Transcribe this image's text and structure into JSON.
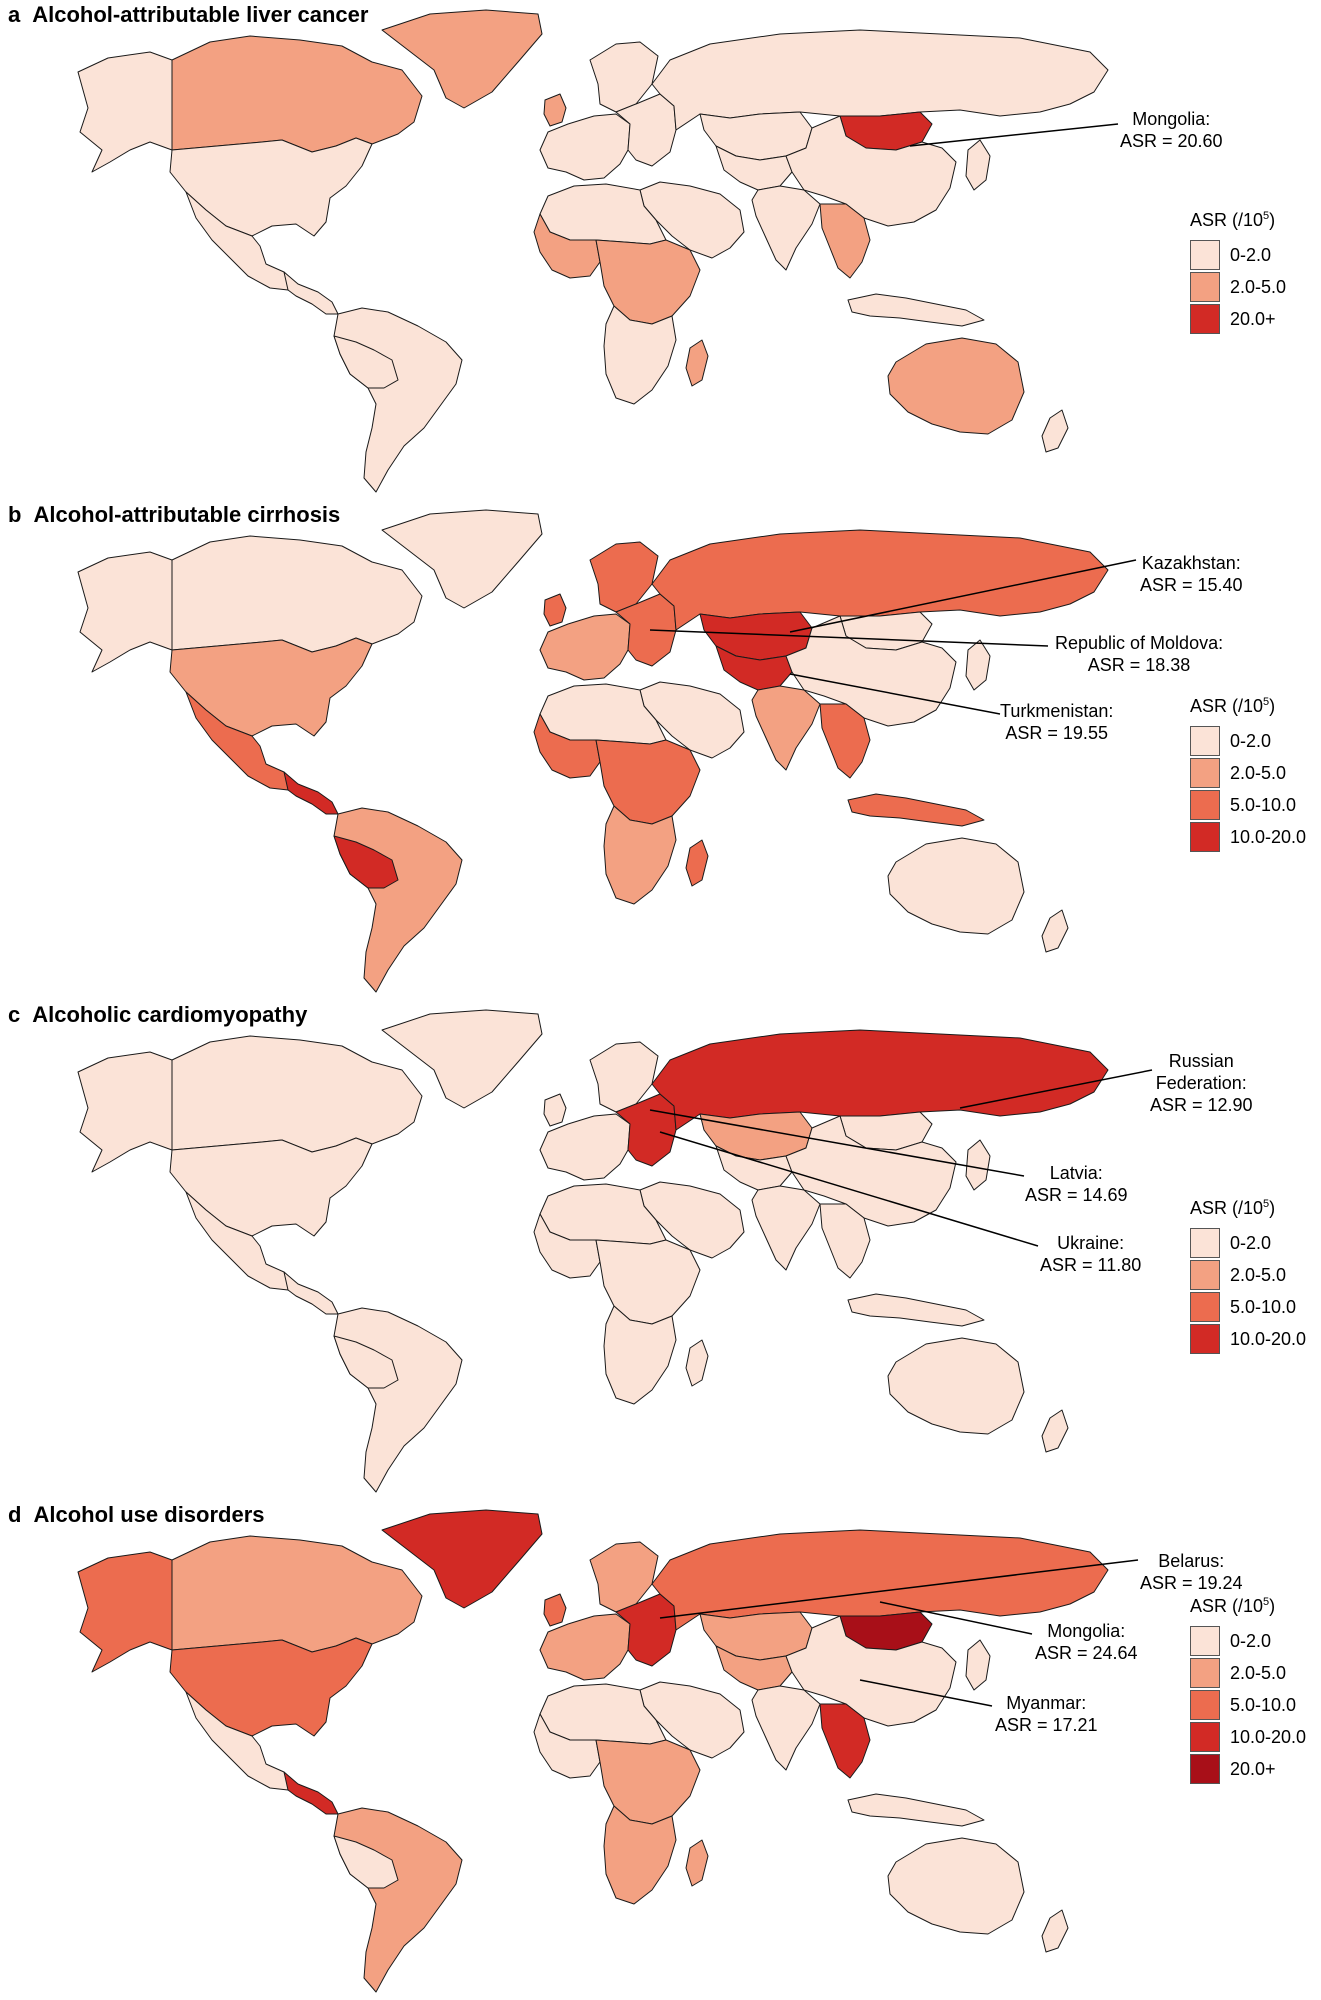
{
  "colors": {
    "c1": "#fbe3d7",
    "c2": "#f3a182",
    "c3": "#ec6c4f",
    "c4": "#d22a25",
    "c5": "#a80f18",
    "border": "#1a1a1a"
  },
  "legend_title_prefix": "ASR (/10",
  "legend_title_sup": "5",
  "legend_title_suffix": ")",
  "panels": [
    {
      "letter": "a",
      "title": "Alcohol-attributable liver cancer",
      "legend": [
        {
          "label": "0-2.0",
          "color": "#fbe3d7"
        },
        {
          "label": "2.0-5.0",
          "color": "#f3a182"
        },
        {
          "label": "20.0+",
          "color": "#d22a25"
        }
      ],
      "callouts": [
        {
          "lines": [
            "Mongolia:",
            "ASR = 20.60"
          ]
        }
      ],
      "fills": {
        "canada": "#f3a182",
        "greenland": "#f3a182",
        "alaska": "#fbe3d7",
        "usa": "#fbe3d7",
        "mexico": "#fbe3d7",
        "central_america": "#fbe3d7",
        "south_america": "#fbe3d7",
        "peru_bolivia": "#fbe3d7",
        "europe": "#fbe3d7",
        "east_europe": "#fbe3d7",
        "russia": "#fbe3d7",
        "kazakhstan": "#fbe3d7",
        "central_asia": "#fbe3d7",
        "mongolia": "#d22a25",
        "china": "#fbe3d7",
        "india": "#fbe3d7",
        "middle_east": "#fbe3d7",
        "southeast_asia": "#f3a182",
        "indonesia": "#fbe3d7",
        "japan": "#fbe3d7",
        "north_africa": "#fbe3d7",
        "west_africa": "#f3a182",
        "central_africa": "#f3a182",
        "southern_africa": "#fbe3d7",
        "madagascar": "#f3a182",
        "australia": "#f3a182",
        "new_zealand": "#fbe3d7",
        "uk": "#f3a182",
        "scandinavia": "#fbe3d7"
      }
    },
    {
      "letter": "b",
      "title": "Alcohol-attributable cirrhosis",
      "legend": [
        {
          "label": "0-2.0",
          "color": "#fbe3d7"
        },
        {
          "label": "2.0-5.0",
          "color": "#f3a182"
        },
        {
          "label": "5.0-10.0",
          "color": "#ec6c4f"
        },
        {
          "label": "10.0-20.0",
          "color": "#d22a25"
        }
      ],
      "callouts": [
        {
          "lines": [
            "Kazakhstan:",
            "ASR = 15.40"
          ]
        },
        {
          "lines": [
            "Republic of Moldova:",
            "ASR = 18.38"
          ]
        },
        {
          "lines": [
            "Turkmenistan:",
            "ASR = 19.55"
          ]
        }
      ],
      "fills": {
        "canada": "#fbe3d7",
        "greenland": "#fbe3d7",
        "alaska": "#fbe3d7",
        "usa": "#f3a182",
        "mexico": "#ec6c4f",
        "central_america": "#d22a25",
        "south_america": "#f3a182",
        "peru_bolivia": "#d22a25",
        "europe": "#f3a182",
        "east_europe": "#ec6c4f",
        "russia": "#ec6c4f",
        "kazakhstan": "#d22a25",
        "central_asia": "#d22a25",
        "mongolia": "#fbe3d7",
        "china": "#fbe3d7",
        "india": "#f3a182",
        "middle_east": "#fbe3d7",
        "southeast_asia": "#ec6c4f",
        "indonesia": "#ec6c4f",
        "japan": "#fbe3d7",
        "north_africa": "#fbe3d7",
        "west_africa": "#ec6c4f",
        "central_africa": "#ec6c4f",
        "southern_africa": "#f3a182",
        "madagascar": "#ec6c4f",
        "australia": "#fbe3d7",
        "new_zealand": "#fbe3d7",
        "uk": "#ec6c4f",
        "scandinavia": "#ec6c4f"
      }
    },
    {
      "letter": "c",
      "title": "Alcoholic cardiomyopathy",
      "legend": [
        {
          "label": "0-2.0",
          "color": "#fbe3d7"
        },
        {
          "label": "2.0-5.0",
          "color": "#f3a182"
        },
        {
          "label": "5.0-10.0",
          "color": "#ec6c4f"
        },
        {
          "label": "10.0-20.0",
          "color": "#d22a25"
        }
      ],
      "callouts": [
        {
          "lines": [
            "Russian",
            "Federation:",
            "ASR = 12.90"
          ]
        },
        {
          "lines": [
            "Latvia:",
            "ASR = 14.69"
          ]
        },
        {
          "lines": [
            "Ukraine:",
            "ASR = 11.80"
          ]
        }
      ],
      "fills": {
        "canada": "#fbe3d7",
        "greenland": "#fbe3d7",
        "alaska": "#fbe3d7",
        "usa": "#fbe3d7",
        "mexico": "#fbe3d7",
        "central_america": "#fbe3d7",
        "south_america": "#fbe3d7",
        "peru_bolivia": "#fbe3d7",
        "europe": "#fbe3d7",
        "east_europe": "#d22a25",
        "russia": "#d22a25",
        "kazakhstan": "#f3a182",
        "central_asia": "#fbe3d7",
        "mongolia": "#fbe3d7",
        "china": "#fbe3d7",
        "india": "#fbe3d7",
        "middle_east": "#fbe3d7",
        "southeast_asia": "#fbe3d7",
        "indonesia": "#fbe3d7",
        "japan": "#fbe3d7",
        "north_africa": "#fbe3d7",
        "west_africa": "#fbe3d7",
        "central_africa": "#fbe3d7",
        "southern_africa": "#fbe3d7",
        "madagascar": "#fbe3d7",
        "australia": "#fbe3d7",
        "new_zealand": "#fbe3d7",
        "uk": "#fbe3d7",
        "scandinavia": "#fbe3d7"
      }
    },
    {
      "letter": "d",
      "title": "Alcohol use disorders",
      "legend": [
        {
          "label": "0-2.0",
          "color": "#fbe3d7"
        },
        {
          "label": "2.0-5.0",
          "color": "#f3a182"
        },
        {
          "label": "5.0-10.0",
          "color": "#ec6c4f"
        },
        {
          "label": "10.0-20.0",
          "color": "#d22a25"
        },
        {
          "label": "20.0+",
          "color": "#a80f18"
        }
      ],
      "callouts": [
        {
          "lines": [
            "Belarus:",
            "ASR = 19.24"
          ]
        },
        {
          "lines": [
            "Mongolia:",
            "ASR = 24.64"
          ]
        },
        {
          "lines": [
            "Myanmar:",
            "ASR = 17.21"
          ]
        }
      ],
      "fills": {
        "canada": "#f3a182",
        "greenland": "#d22a25",
        "alaska": "#ec6c4f",
        "usa": "#ec6c4f",
        "mexico": "#fbe3d7",
        "central_america": "#d22a25",
        "south_america": "#f3a182",
        "peru_bolivia": "#fbe3d7",
        "europe": "#f3a182",
        "east_europe": "#d22a25",
        "russia": "#ec6c4f",
        "kazakhstan": "#f3a182",
        "central_asia": "#f3a182",
        "mongolia": "#a80f18",
        "china": "#fbe3d7",
        "india": "#fbe3d7",
        "middle_east": "#fbe3d7",
        "southeast_asia": "#d22a25",
        "indonesia": "#fbe3d7",
        "japan": "#fbe3d7",
        "north_africa": "#fbe3d7",
        "west_africa": "#fbe3d7",
        "central_africa": "#f3a182",
        "southern_africa": "#f3a182",
        "madagascar": "#f3a182",
        "australia": "#fbe3d7",
        "new_zealand": "#fbe3d7",
        "uk": "#ec6c4f",
        "scandinavia": "#f3a182"
      }
    }
  ]
}
